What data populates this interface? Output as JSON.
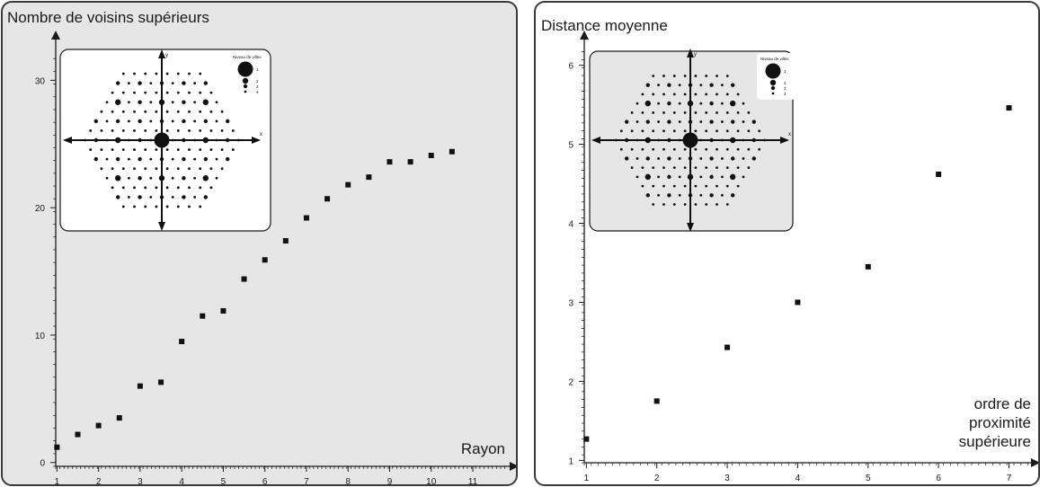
{
  "chart_data": [
    {
      "type": "scatter",
      "ylabel": "Nombre de voisins supérieurs",
      "xlabel": "Rayon",
      "xticks": [
        1,
        2,
        3,
        4,
        5,
        6,
        7,
        8,
        9,
        10,
        11
      ],
      "yticks": [
        0,
        10,
        20,
        30
      ],
      "xlim": [
        0.97,
        11.8
      ],
      "ylim": [
        -0.3,
        32
      ],
      "points": [
        {
          "x": 1,
          "y": 1.2
        },
        {
          "x": 1.5,
          "y": 2.2
        },
        {
          "x": 2,
          "y": 2.9
        },
        {
          "x": 2.5,
          "y": 3.5
        },
        {
          "x": 3,
          "y": 6
        },
        {
          "x": 3.5,
          "y": 6.3
        },
        {
          "x": 4,
          "y": 9.5
        },
        {
          "x": 4.5,
          "y": 11.5
        },
        {
          "x": 5,
          "y": 11.9
        },
        {
          "x": 5.5,
          "y": 14.4
        },
        {
          "x": 6,
          "y": 15.9
        },
        {
          "x": 6.5,
          "y": 17.4
        },
        {
          "x": 7,
          "y": 19.2
        },
        {
          "x": 7.5,
          "y": 20.7
        },
        {
          "x": 8,
          "y": 21.8
        },
        {
          "x": 8.5,
          "y": 22.4
        },
        {
          "x": 9,
          "y": 23.6
        },
        {
          "x": 9.5,
          "y": 23.6
        },
        {
          "x": 10,
          "y": 24.1
        },
        {
          "x": 10.5,
          "y": 24.4
        }
      ],
      "inset": {
        "legend_title": "Niveau de villes",
        "legend_levels": [
          "1",
          "2",
          "3",
          "4"
        ],
        "axis_x": "x",
        "axis_y": "y"
      }
    },
    {
      "type": "scatter",
      "ylabel": "Distance moyenne",
      "xlabel": [
        "ordre de",
        "proximité",
        "supérieure"
      ],
      "xticks": [
        1,
        2,
        3,
        4,
        5,
        6,
        7
      ],
      "yticks": [
        1,
        2,
        3,
        4,
        5,
        6
      ],
      "xlim": [
        0.97,
        7.3
      ],
      "ylim": [
        0.97,
        6.2
      ],
      "points": [
        {
          "x": 1,
          "y": 1.27
        },
        {
          "x": 2,
          "y": 1.75
        },
        {
          "x": 3,
          "y": 2.43
        },
        {
          "x": 4,
          "y": 3.0
        },
        {
          "x": 5,
          "y": 3.45
        },
        {
          "x": 6,
          "y": 4.62
        },
        {
          "x": 7,
          "y": 5.46
        }
      ],
      "inset": {
        "legend_title": "Niveau de villes",
        "legend_levels": [
          "1",
          "2",
          "3",
          "4"
        ],
        "axis_x": "x",
        "axis_y": "y"
      }
    }
  ]
}
